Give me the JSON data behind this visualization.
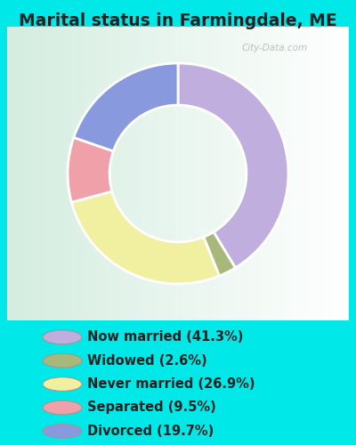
{
  "title": "Marital status in Farmingdale, ME",
  "slices": [
    41.3,
    2.6,
    26.9,
    9.5,
    19.7
  ],
  "labels": [
    "Now married (41.3%)",
    "Widowed (2.6%)",
    "Never married (26.9%)",
    "Separated (9.5%)",
    "Divorced (19.7%)"
  ],
  "colors": [
    "#c0aede",
    "#a8b87a",
    "#f0f0a0",
    "#f0a0a8",
    "#8899dd"
  ],
  "chart_bg": "#e8f5ee",
  "outer_bg": "#00e8e8",
  "title_color": "#222222",
  "title_fontsize": 13.5,
  "legend_fontsize": 10.5,
  "watermark": "City-Data.com",
  "donut_width": 0.38,
  "startangle": 90
}
